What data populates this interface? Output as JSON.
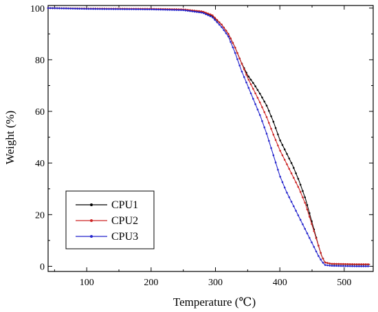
{
  "chart_data": {
    "type": "line",
    "title": "",
    "xlabel": "Temperature (℃)",
    "ylabel": "Weight (%)",
    "xlim": [
      40,
      545
    ],
    "ylim": [
      -2,
      101
    ],
    "xticks": [
      100,
      200,
      300,
      400,
      500
    ],
    "yticks": [
      0,
      20,
      40,
      60,
      80,
      100
    ],
    "grid": false,
    "legend_position": "bottom-left",
    "series": [
      {
        "name": "CPU1",
        "color": "#000000",
        "x": [
          40,
          100,
          200,
          250,
          280,
          295,
          310,
          320,
          330,
          340,
          350,
          360,
          370,
          380,
          390,
          400,
          410,
          420,
          430,
          440,
          450,
          460,
          465,
          470,
          480,
          500,
          520,
          540
        ],
        "y": [
          100,
          99.8,
          99.6,
          99.4,
          98.5,
          97,
          93.5,
          90,
          85,
          79,
          74,
          70.5,
          66.5,
          62,
          56,
          49,
          44,
          39,
          33,
          26,
          17,
          8,
          4,
          1.5,
          0.9,
          0.8,
          0.7,
          0.7
        ]
      },
      {
        "name": "CPU2",
        "color": "#cc2222",
        "x": [
          40,
          100,
          200,
          250,
          280,
          295,
          310,
          320,
          330,
          340,
          350,
          360,
          370,
          380,
          390,
          400,
          410,
          420,
          430,
          440,
          450,
          460,
          465,
          470,
          480,
          500,
          520,
          540
        ],
        "y": [
          100,
          99.8,
          99.7,
          99.5,
          98.7,
          97.3,
          93.5,
          90,
          85,
          79,
          73,
          68,
          63,
          57.5,
          51,
          45,
          40,
          35,
          30,
          24,
          16,
          8,
          4,
          1.5,
          1,
          0.9,
          0.8,
          0.8
        ]
      },
      {
        "name": "CPU3",
        "color": "#2222cc",
        "x": [
          40,
          100,
          200,
          250,
          280,
          295,
          310,
          320,
          330,
          340,
          350,
          360,
          370,
          380,
          390,
          400,
          410,
          420,
          430,
          440,
          450,
          460,
          465,
          470,
          480,
          500,
          520,
          540
        ],
        "y": [
          100,
          99.7,
          99.5,
          99.2,
          98.2,
          96.5,
          92.5,
          89,
          83,
          76,
          70,
          64,
          58,
          51,
          43,
          35,
          29,
          24,
          19,
          14,
          9,
          4,
          2,
          0.5,
          0.2,
          0.1,
          0,
          0
        ]
      }
    ]
  }
}
